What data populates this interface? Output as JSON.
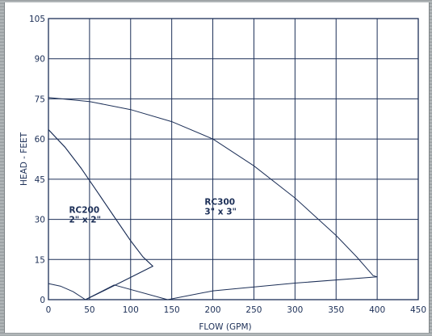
{
  "chart_data": {
    "type": "line",
    "xlabel": "FLOW (GPM)",
    "ylabel": "HEAD - FEET",
    "xlim": [
      0,
      450
    ],
    "ylim": [
      0,
      105
    ],
    "xticks": [
      0,
      50,
      100,
      150,
      200,
      250,
      300,
      350,
      400,
      450
    ],
    "yticks": [
      0,
      15,
      30,
      45,
      60,
      75,
      90,
      105
    ],
    "grid": true,
    "curves": [
      {
        "name": "RC200-envelope",
        "points": [
          [
            0,
            63.5
          ],
          [
            20,
            57
          ],
          [
            40,
            49
          ],
          [
            60,
            40
          ],
          [
            80,
            31
          ],
          [
            100,
            22
          ],
          [
            115,
            16
          ],
          [
            127,
            12.5
          ],
          [
            85,
            6
          ],
          [
            45,
            0
          ],
          [
            30,
            3
          ],
          [
            15,
            5
          ],
          [
            0,
            6
          ]
        ]
      },
      {
        "name": "RC300-envelope",
        "points": [
          [
            0,
            75.5
          ],
          [
            50,
            74
          ],
          [
            100,
            71
          ],
          [
            150,
            66.5
          ],
          [
            200,
            60
          ],
          [
            250,
            50
          ],
          [
            300,
            38
          ],
          [
            350,
            24
          ],
          [
            375,
            16
          ],
          [
            395,
            9
          ],
          [
            400,
            8.5
          ],
          [
            300,
            6.2
          ],
          [
            200,
            3.3
          ],
          [
            145,
            0
          ],
          [
            80,
            5.5
          ],
          [
            45,
            0
          ],
          [
            85,
            6
          ],
          [
            127,
            12.5
          ],
          [
            115,
            16
          ],
          [
            100,
            22
          ],
          [
            80,
            31
          ],
          [
            60,
            40
          ],
          [
            40,
            49
          ],
          [
            20,
            57
          ],
          [
            0,
            63.5
          ]
        ]
      }
    ],
    "annotations": [
      {
        "lines": [
          "RC200",
          "2\" x 2\""
        ],
        "x": 25,
        "y": 30
      },
      {
        "lines": [
          "RC300",
          "3\" x 3\""
        ],
        "x": 190,
        "y": 33
      }
    ]
  }
}
